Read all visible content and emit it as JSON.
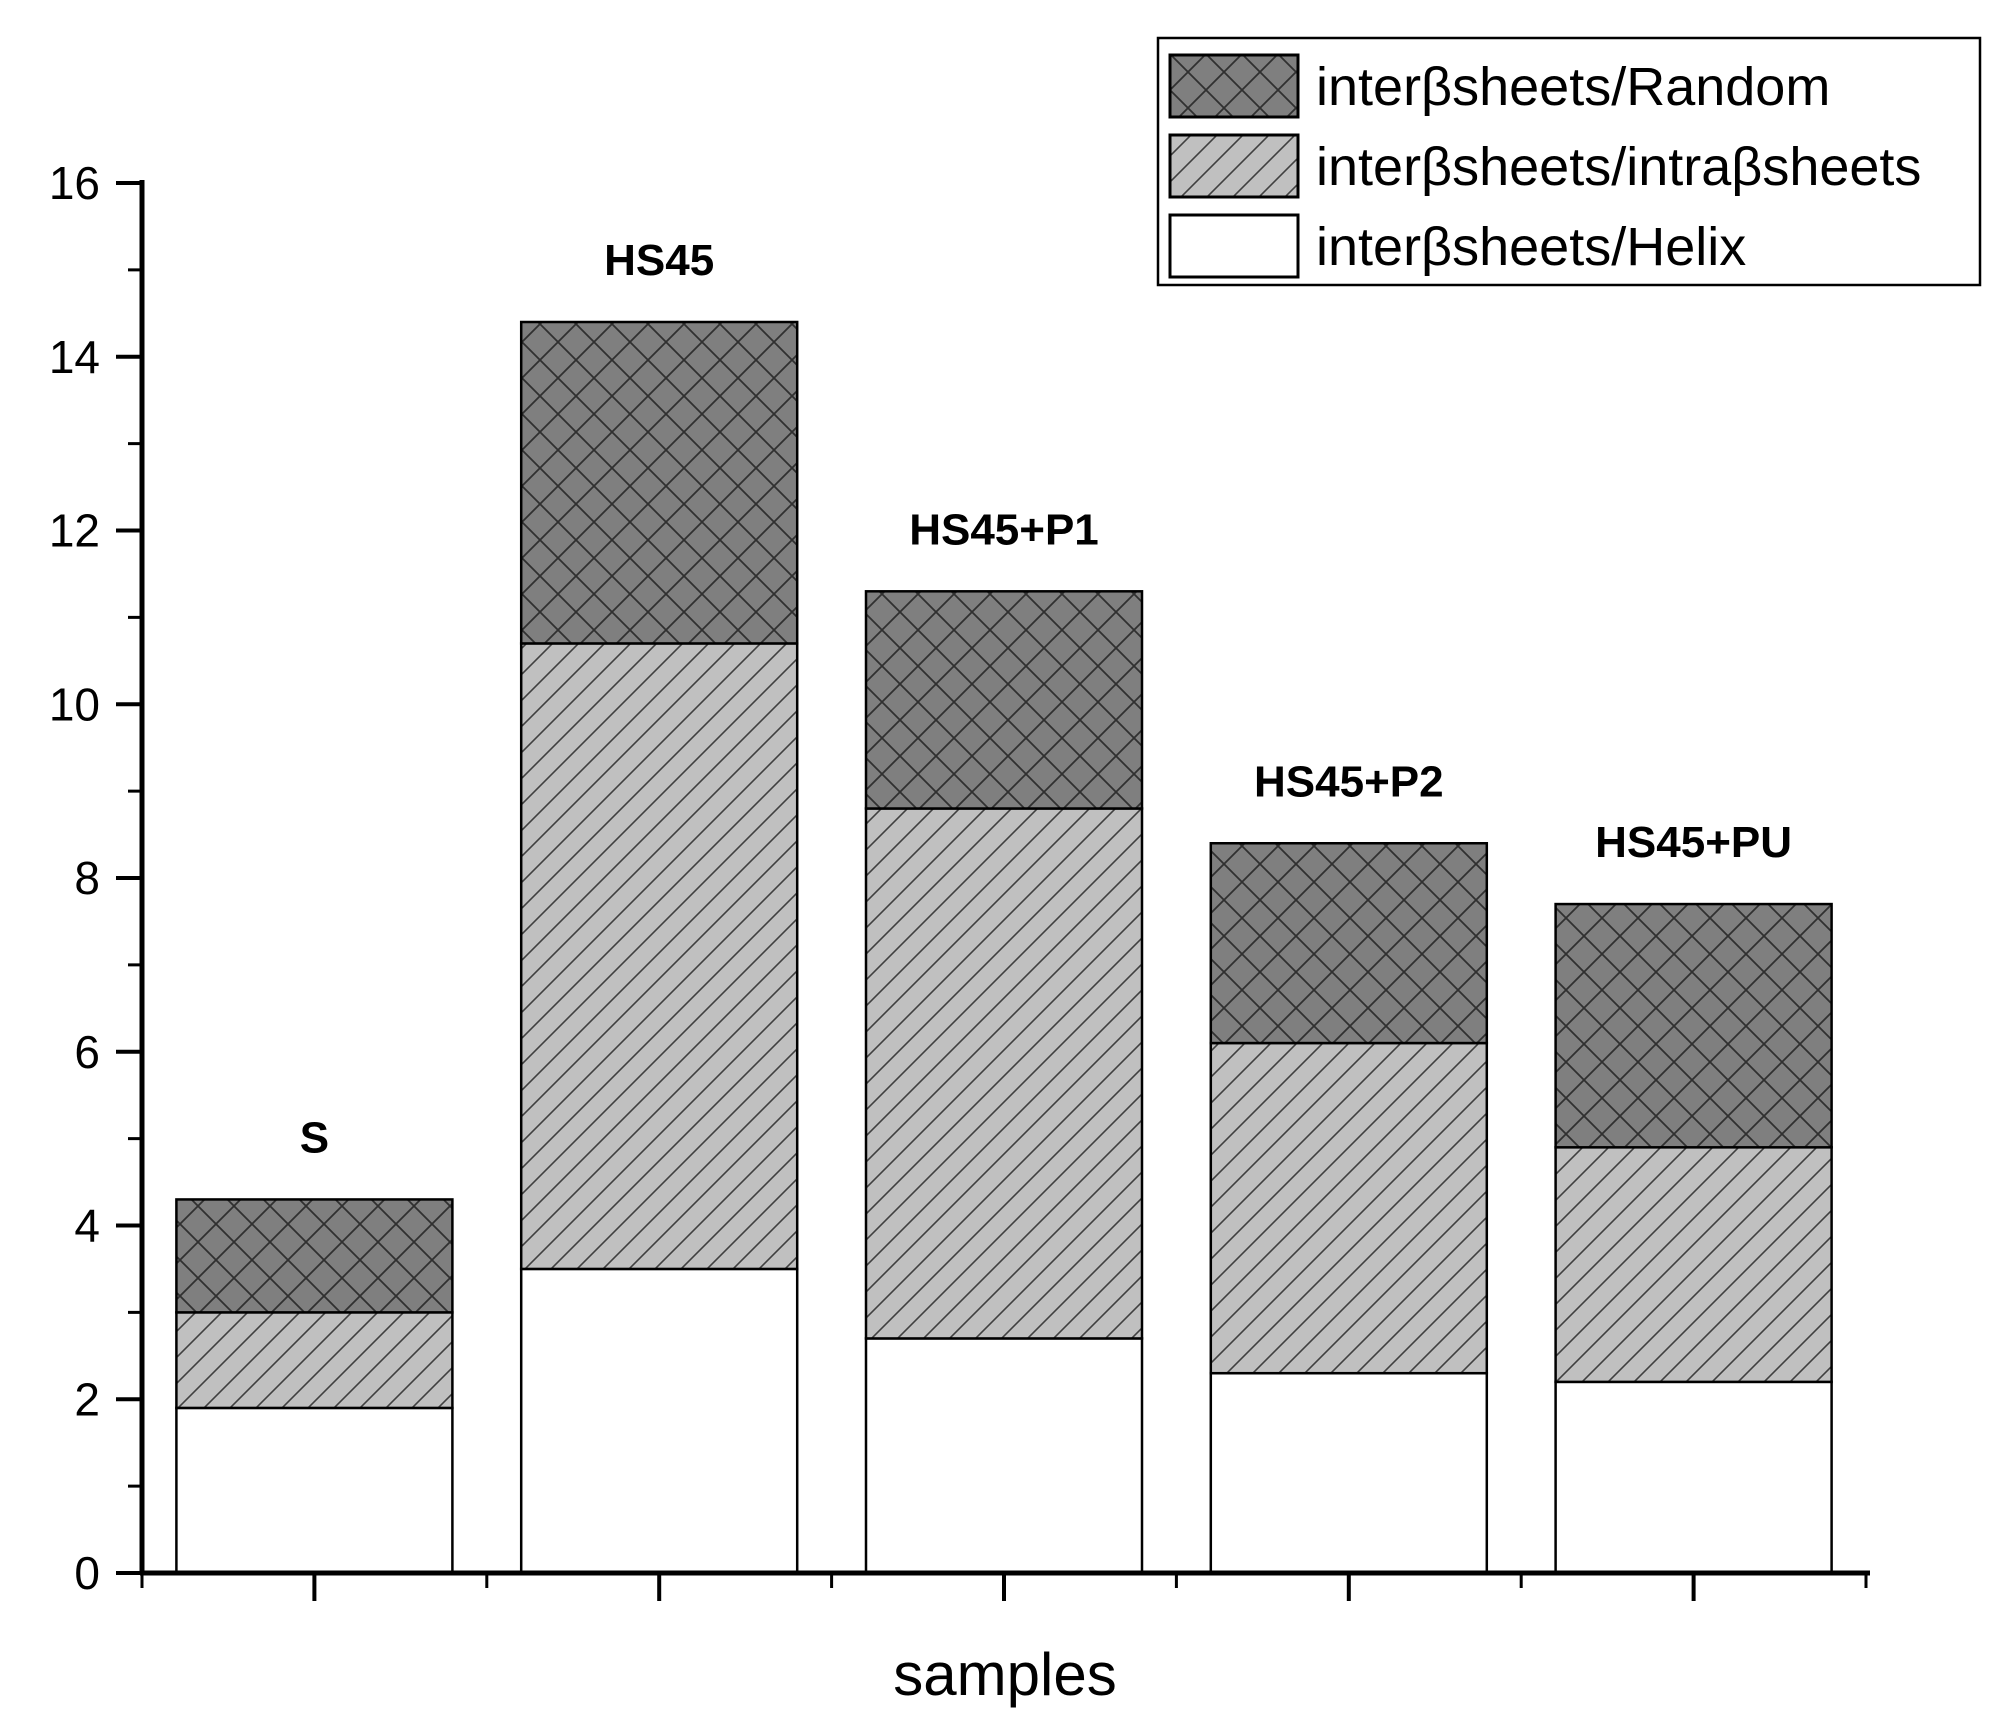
{
  "chart_data": {
    "type": "bar",
    "stacked": true,
    "title": "",
    "xlabel": "samples",
    "ylabel": "",
    "ylim": [
      0,
      16
    ],
    "yticks": [
      "0",
      "2",
      "4",
      "6",
      "8",
      "10",
      "12",
      "14",
      "16"
    ],
    "categories": [
      "S",
      "HS45",
      "HS45+P1",
      "HS45+P2",
      "HS45+PU"
    ],
    "series": [
      {
        "name": "interβsheets/Helix",
        "values": [
          1.9,
          3.5,
          2.7,
          2.3,
          2.2
        ],
        "fill": "#ffffff",
        "pattern": "none"
      },
      {
        "name": "interβsheets/intraβsheets",
        "values": [
          1.1,
          7.2,
          6.1,
          3.8,
          2.7
        ],
        "fill": "#c0c0c0",
        "pattern": "diagonal"
      },
      {
        "name": "interβsheets/Random",
        "values": [
          1.3,
          3.7,
          2.5,
          2.3,
          2.8
        ],
        "fill": "#808080",
        "pattern": "crosshatch"
      }
    ],
    "legend": {
      "position": "top-right",
      "order": [
        "interβsheets/Random",
        "interβsheets/intraβsheets",
        "interβsheets/Helix"
      ]
    },
    "grid": false
  }
}
